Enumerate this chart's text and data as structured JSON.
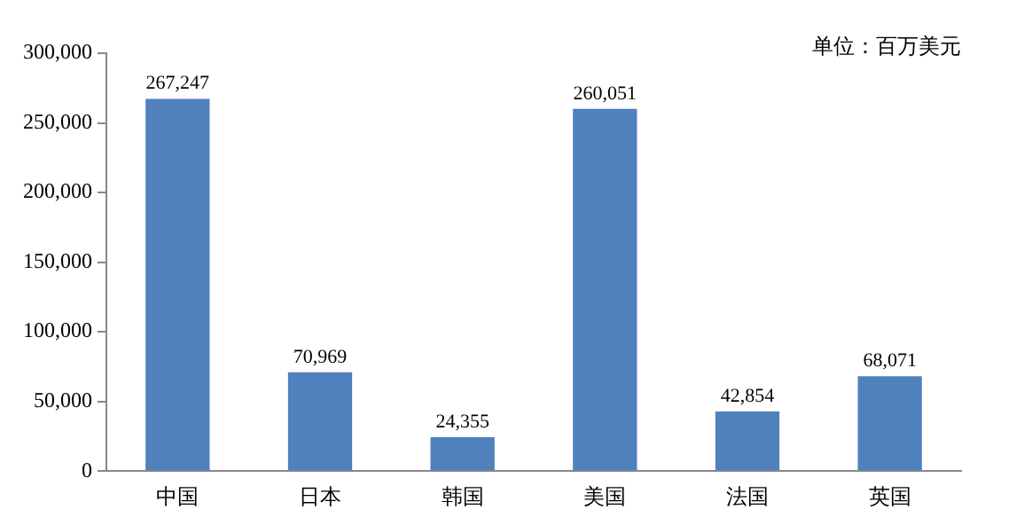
{
  "chart_data": {
    "type": "bar",
    "categories": [
      "中国",
      "日本",
      "韩国",
      "美国",
      "法国",
      "英国"
    ],
    "values": [
      267247,
      70969,
      24355,
      260051,
      42854,
      68071
    ],
    "value_labels": [
      "267,247",
      "70,969",
      "24,355",
      "260,051",
      "42,854",
      "68,071"
    ],
    "color": "#4f81bd",
    "ylim": [
      0,
      300000
    ],
    "yticks": [
      {
        "value": 0,
        "label": "0"
      },
      {
        "value": 50000,
        "label": "50,000"
      },
      {
        "value": 100000,
        "label": "100,000"
      },
      {
        "value": 150000,
        "label": "150,000"
      },
      {
        "value": 200000,
        "label": "200,000"
      },
      {
        "value": 250000,
        "label": "250,000"
      },
      {
        "value": 300000,
        "label": "300,000"
      }
    ],
    "annotations": [
      "单位：百万美元"
    ],
    "grid": false,
    "legend": false
  }
}
